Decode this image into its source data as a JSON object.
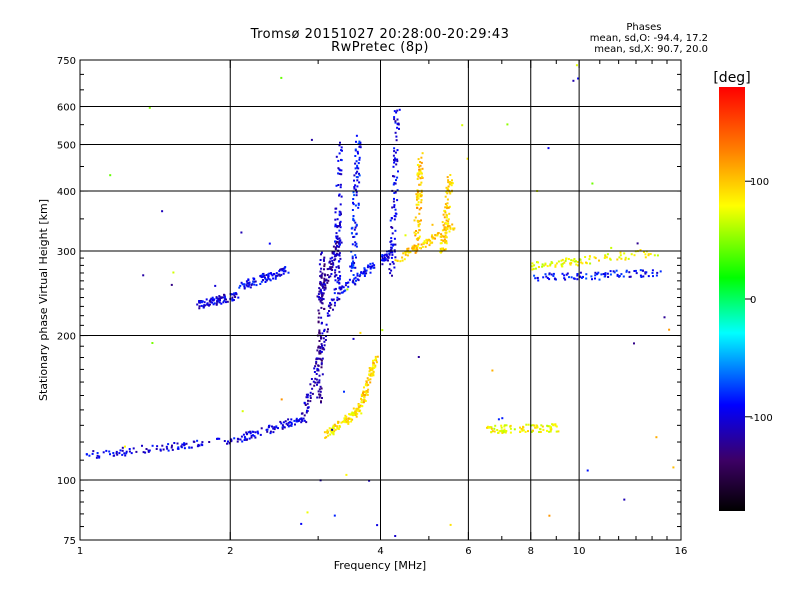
{
  "title_line1": "Tromsø 20151027 20:28:00-20:29:43",
  "title_line2": "RwPretec (8p)",
  "stats": {
    "heading": "Phases",
    "line1": "mean, sd,O: -94.4, 17.2",
    "line2": "mean, sd,X:  90.7, 20.0"
  },
  "chart_data": {
    "type": "scatter",
    "xlabel": "Frequency [MHz]",
    "ylabel": "Stationary phase Virtual Height [km]",
    "xscale": "log",
    "yscale": "log",
    "xlim": [
      1,
      16
    ],
    "ylim": [
      75,
      750
    ],
    "x_ticks": [
      1,
      2,
      4,
      6,
      8,
      10,
      16
    ],
    "x_tick_labels": [
      "1",
      "2",
      "4",
      "6",
      "8",
      "10",
      "16"
    ],
    "x_grid": [
      2,
      4,
      6,
      8,
      10
    ],
    "y_ticks": [
      75,
      100,
      200,
      300,
      400,
      500,
      600,
      750
    ],
    "y_tick_labels": [
      "75",
      "100",
      "200",
      "300",
      "400",
      "500",
      "600",
      "750"
    ],
    "y_grid": [
      100,
      200,
      300,
      400,
      500,
      600
    ],
    "grid": true,
    "colorbar": {
      "label": "[deg]",
      "range": [
        -180,
        180
      ],
      "ticks": [
        100,
        0,
        -100
      ],
      "tick_labels": [
        "100",
        "0",
        "-100"
      ],
      "colors": [
        "#000000",
        "#3d0066",
        "#0000ff",
        "#00ffff",
        "#00ff00",
        "#ffff00",
        "#ff8000",
        "#ff0000"
      ]
    },
    "traces": [
      {
        "x0": 1.0,
        "x1": 2.0,
        "h0": 113,
        "h1": 121,
        "phase": -100
      },
      {
        "x0": 2.0,
        "x1": 2.8,
        "h0": 121,
        "h1": 135,
        "phase": -100
      },
      {
        "x0": 2.8,
        "x1": 3.2,
        "h0": 135,
        "h1": 240,
        "phase": -110
      },
      {
        "x0": 3.0,
        "x1": 3.05,
        "h0": 140,
        "h1": 300,
        "phase": -120
      },
      {
        "x0": 1.7,
        "x1": 2.05,
        "h0": 232,
        "h1": 243,
        "phase": -100
      },
      {
        "x0": 2.1,
        "x1": 2.6,
        "h0": 255,
        "h1": 275,
        "phase": -95
      },
      {
        "x0": 3.0,
        "x1": 3.3,
        "h0": 240,
        "h1": 320,
        "phase": -115
      },
      {
        "x0": 3.3,
        "x1": 4.2,
        "h0": 250,
        "h1": 300,
        "phase": -95
      },
      {
        "x0": 3.25,
        "x1": 3.3,
        "h0": 230,
        "h1": 520,
        "phase": -100
      },
      {
        "x0": 3.5,
        "x1": 3.6,
        "h0": 270,
        "h1": 520,
        "phase": -90
      },
      {
        "x0": 4.2,
        "x1": 4.3,
        "h0": 270,
        "h1": 600,
        "phase": -100
      },
      {
        "x0": 3.1,
        "x1": 3.6,
        "h0": 125,
        "h1": 140,
        "phase": 90
      },
      {
        "x0": 3.6,
        "x1": 3.9,
        "h0": 140,
        "h1": 180,
        "phase": 95
      },
      {
        "x0": 4.3,
        "x1": 5.6,
        "h0": 290,
        "h1": 340,
        "phase": 95
      },
      {
        "x0": 4.7,
        "x1": 4.8,
        "h0": 300,
        "h1": 480,
        "phase": 100
      },
      {
        "x0": 5.3,
        "x1": 5.5,
        "h0": 300,
        "h1": 430,
        "phase": 95
      },
      {
        "x0": 6.5,
        "x1": 9.0,
        "h0": 128,
        "h1": 129,
        "phase": 80
      },
      {
        "x0": 8.0,
        "x1": 14.5,
        "h0": 265,
        "h1": 272,
        "phase": -90
      },
      {
        "x0": 8.0,
        "x1": 14.5,
        "h0": 280,
        "h1": 300,
        "phase": 80
      }
    ]
  }
}
